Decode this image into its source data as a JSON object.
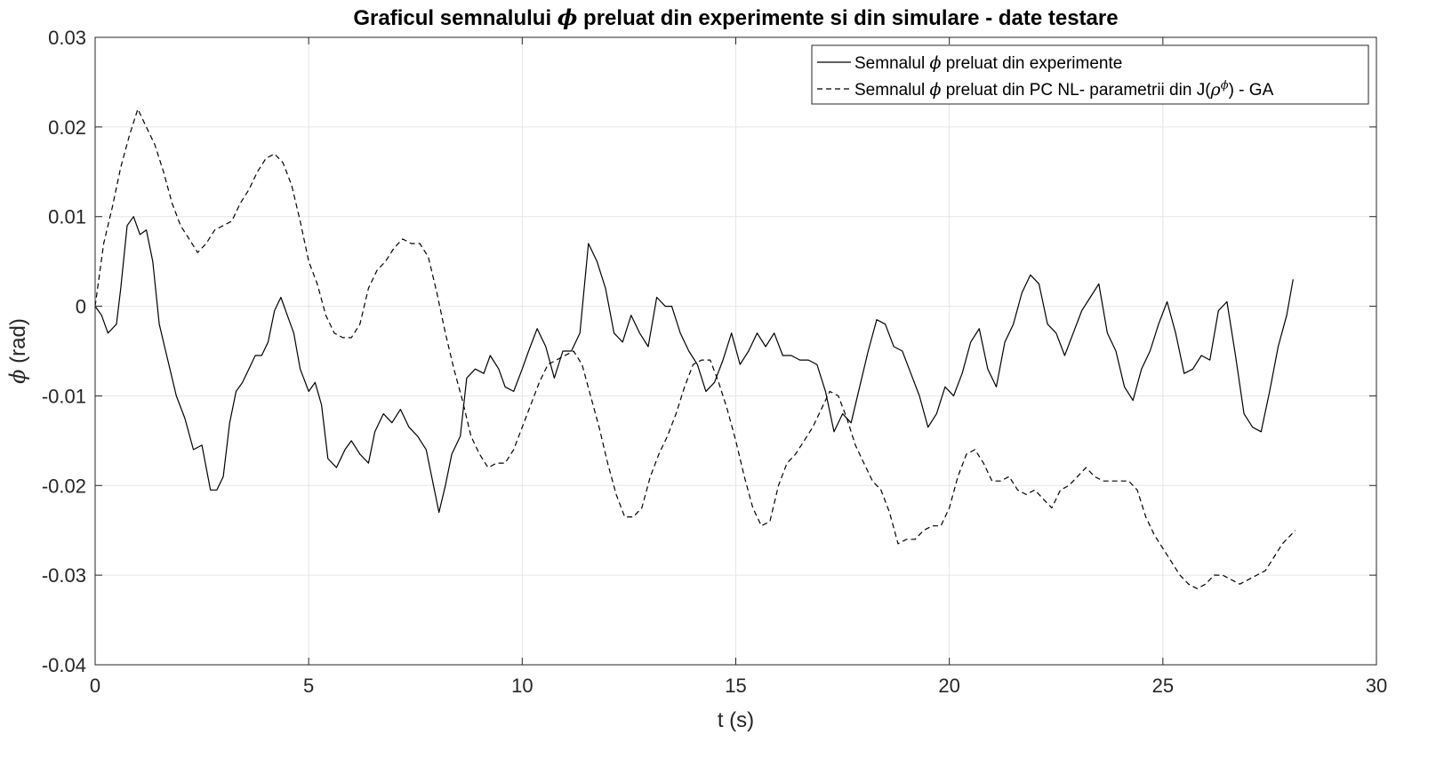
{
  "chart_data": {
    "type": "line",
    "title_parts": [
      "Graficul semnalului ",
      "ϕ",
      " preluat din experimente si din simulare - date testare"
    ],
    "xlabel": "t (s)",
    "ylabel_parts": [
      "ϕ",
      " (rad)"
    ],
    "xlim": [
      0,
      30
    ],
    "ylim": [
      -0.04,
      0.03
    ],
    "xticks": [
      0,
      5,
      10,
      15,
      20,
      25,
      30
    ],
    "xtick_labels": [
      "0",
      "5",
      "10",
      "15",
      "20",
      "25",
      "30"
    ],
    "yticks": [
      0.03,
      0.02,
      0.01,
      0,
      -0.01,
      -0.02,
      -0.03,
      -0.04
    ],
    "ytick_labels": [
      "0.03",
      "0.02",
      "0.01",
      "0",
      "-0.01",
      "-0.02",
      "-0.03",
      "-0.04"
    ],
    "grid": true,
    "legend_position": "top-right",
    "series": [
      {
        "name_parts": [
          "Semnalul ",
          "ϕ",
          " preluat din experimente"
        ],
        "style": "solid",
        "color": "#000000",
        "points": [
          [
            0,
            0
          ],
          [
            0.15,
            -0.001
          ],
          [
            0.3,
            -0.003
          ],
          [
            0.5,
            -0.002
          ],
          [
            0.6,
            0.002
          ],
          [
            0.75,
            0.009
          ],
          [
            0.9,
            0.01
          ],
          [
            1.05,
            0.008
          ],
          [
            1.2,
            0.0085
          ],
          [
            1.35,
            0.005
          ],
          [
            1.5,
            -0.002
          ],
          [
            1.7,
            -0.006
          ],
          [
            1.9,
            -0.01
          ],
          [
            2.1,
            -0.0125
          ],
          [
            2.3,
            -0.016
          ],
          [
            2.5,
            -0.0155
          ],
          [
            2.7,
            -0.0205
          ],
          [
            2.85,
            -0.0205
          ],
          [
            3.0,
            -0.019
          ],
          [
            3.15,
            -0.013
          ],
          [
            3.3,
            -0.0095
          ],
          [
            3.45,
            -0.0085
          ],
          [
            3.6,
            -0.007
          ],
          [
            3.75,
            -0.0055
          ],
          [
            3.9,
            -0.0055
          ],
          [
            4.05,
            -0.004
          ],
          [
            4.2,
            -0.0005
          ],
          [
            4.35,
            0.001
          ],
          [
            4.5,
            -0.001
          ],
          [
            4.65,
            -0.003
          ],
          [
            4.8,
            -0.007
          ],
          [
            5.0,
            -0.0095
          ],
          [
            5.15,
            -0.0085
          ],
          [
            5.3,
            -0.011
          ],
          [
            5.45,
            -0.017
          ],
          [
            5.65,
            -0.018
          ],
          [
            5.85,
            -0.016
          ],
          [
            6.0,
            -0.015
          ],
          [
            6.2,
            -0.0165
          ],
          [
            6.4,
            -0.0175
          ],
          [
            6.55,
            -0.014
          ],
          [
            6.75,
            -0.012
          ],
          [
            6.95,
            -0.013
          ],
          [
            7.15,
            -0.0115
          ],
          [
            7.35,
            -0.0135
          ],
          [
            7.55,
            -0.0145
          ],
          [
            7.75,
            -0.016
          ],
          [
            7.9,
            -0.0195
          ],
          [
            8.05,
            -0.023
          ],
          [
            8.2,
            -0.02
          ],
          [
            8.35,
            -0.0165
          ],
          [
            8.55,
            -0.0145
          ],
          [
            8.7,
            -0.008
          ],
          [
            8.9,
            -0.007
          ],
          [
            9.1,
            -0.0075
          ],
          [
            9.25,
            -0.0055
          ],
          [
            9.45,
            -0.007
          ],
          [
            9.6,
            -0.009
          ],
          [
            9.8,
            -0.0095
          ],
          [
            10.0,
            -0.007
          ],
          [
            10.15,
            -0.005
          ],
          [
            10.35,
            -0.0025
          ],
          [
            10.55,
            -0.0045
          ],
          [
            10.75,
            -0.008
          ],
          [
            10.95,
            -0.005
          ],
          [
            11.15,
            -0.005
          ],
          [
            11.35,
            -0.003
          ],
          [
            11.55,
            0.007
          ],
          [
            11.75,
            0.005
          ],
          [
            11.95,
            0.002
          ],
          [
            12.15,
            -0.003
          ],
          [
            12.35,
            -0.004
          ],
          [
            12.55,
            -0.001
          ],
          [
            12.75,
            -0.003
          ],
          [
            12.95,
            -0.0045
          ],
          [
            13.15,
            0.001
          ],
          [
            13.35,
            0
          ],
          [
            13.5,
            0
          ],
          [
            13.7,
            -0.003
          ],
          [
            13.9,
            -0.005
          ],
          [
            14.1,
            -0.0065
          ],
          [
            14.3,
            -0.0095
          ],
          [
            14.5,
            -0.0085
          ],
          [
            14.7,
            -0.006
          ],
          [
            14.9,
            -0.003
          ],
          [
            15.1,
            -0.0065
          ],
          [
            15.3,
            -0.005
          ],
          [
            15.5,
            -0.003
          ],
          [
            15.7,
            -0.0045
          ],
          [
            15.9,
            -0.003
          ],
          [
            16.1,
            -0.0055
          ],
          [
            16.3,
            -0.0055
          ],
          [
            16.5,
            -0.006
          ],
          [
            16.7,
            -0.006
          ],
          [
            16.9,
            -0.0065
          ],
          [
            17.1,
            -0.0095
          ],
          [
            17.3,
            -0.014
          ],
          [
            17.5,
            -0.012
          ],
          [
            17.7,
            -0.013
          ],
          [
            17.9,
            -0.009
          ],
          [
            18.1,
            -0.005
          ],
          [
            18.3,
            -0.0015
          ],
          [
            18.5,
            -0.002
          ],
          [
            18.7,
            -0.0045
          ],
          [
            18.9,
            -0.005
          ],
          [
            19.1,
            -0.0075
          ],
          [
            19.3,
            -0.01
          ],
          [
            19.5,
            -0.0135
          ],
          [
            19.7,
            -0.012
          ],
          [
            19.9,
            -0.009
          ],
          [
            20.1,
            -0.01
          ],
          [
            20.3,
            -0.0075
          ],
          [
            20.5,
            -0.004
          ],
          [
            20.7,
            -0.0025
          ],
          [
            20.9,
            -0.007
          ],
          [
            21.1,
            -0.009
          ],
          [
            21.3,
            -0.004
          ],
          [
            21.5,
            -0.002
          ],
          [
            21.7,
            0.0015
          ],
          [
            21.9,
            0.0035
          ],
          [
            22.1,
            0.0025
          ],
          [
            22.3,
            -0.002
          ],
          [
            22.5,
            -0.003
          ],
          [
            22.7,
            -0.0055
          ],
          [
            22.9,
            -0.003
          ],
          [
            23.1,
            -0.0005
          ],
          [
            23.3,
            0.001
          ],
          [
            23.5,
            0.0025
          ],
          [
            23.7,
            -0.003
          ],
          [
            23.9,
            -0.005
          ],
          [
            24.1,
            -0.009
          ],
          [
            24.3,
            -0.0105
          ],
          [
            24.5,
            -0.007
          ],
          [
            24.7,
            -0.005
          ],
          [
            24.9,
            -0.002
          ],
          [
            25.1,
            0.0005
          ],
          [
            25.3,
            -0.003
          ],
          [
            25.5,
            -0.0075
          ],
          [
            25.7,
            -0.007
          ],
          [
            25.9,
            -0.0055
          ],
          [
            26.1,
            -0.006
          ],
          [
            26.3,
            -0.0005
          ],
          [
            26.5,
            0.0005
          ],
          [
            26.7,
            -0.0055
          ],
          [
            26.9,
            -0.012
          ],
          [
            27.1,
            -0.0135
          ],
          [
            27.3,
            -0.014
          ],
          [
            27.5,
            -0.0095
          ],
          [
            27.7,
            -0.0045
          ],
          [
            27.9,
            -0.001
          ],
          [
            28.05,
            0.003
          ]
        ]
      },
      {
        "name_parts": [
          "Semnalul ",
          "ϕ",
          " preluat din PC NL- parametrii din J(",
          "ρ",
          "ϕ",
          ") - GA"
        ],
        "style": "dashed",
        "color": "#000000",
        "points": [
          [
            0,
            0
          ],
          [
            0.2,
            0.007
          ],
          [
            0.4,
            0.011
          ],
          [
            0.6,
            0.0155
          ],
          [
            0.8,
            0.019
          ],
          [
            1.0,
            0.022
          ],
          [
            1.2,
            0.02
          ],
          [
            1.4,
            0.018
          ],
          [
            1.6,
            0.015
          ],
          [
            1.8,
            0.0115
          ],
          [
            2.0,
            0.009
          ],
          [
            2.2,
            0.0075
          ],
          [
            2.4,
            0.006
          ],
          [
            2.6,
            0.007
          ],
          [
            2.8,
            0.0085
          ],
          [
            3.0,
            0.009
          ],
          [
            3.2,
            0.0095
          ],
          [
            3.4,
            0.0115
          ],
          [
            3.6,
            0.013
          ],
          [
            3.8,
            0.015
          ],
          [
            4.0,
            0.0165
          ],
          [
            4.2,
            0.017
          ],
          [
            4.4,
            0.016
          ],
          [
            4.6,
            0.0135
          ],
          [
            4.8,
            0.0095
          ],
          [
            5.0,
            0.005
          ],
          [
            5.2,
            0.0025
          ],
          [
            5.4,
            -0.001
          ],
          [
            5.6,
            -0.003
          ],
          [
            5.8,
            -0.0035
          ],
          [
            6.0,
            -0.0035
          ],
          [
            6.2,
            -0.002
          ],
          [
            6.4,
            0.002
          ],
          [
            6.6,
            0.004
          ],
          [
            6.8,
            0.005
          ],
          [
            7.0,
            0.0065
          ],
          [
            7.2,
            0.0075
          ],
          [
            7.4,
            0.007
          ],
          [
            7.6,
            0.007
          ],
          [
            7.8,
            0.0055
          ],
          [
            8.0,
            0.0015
          ],
          [
            8.2,
            -0.003
          ],
          [
            8.4,
            -0.007
          ],
          [
            8.6,
            -0.0105
          ],
          [
            8.8,
            -0.0145
          ],
          [
            9.0,
            -0.0165
          ],
          [
            9.2,
            -0.018
          ],
          [
            9.4,
            -0.0175
          ],
          [
            9.6,
            -0.0175
          ],
          [
            9.8,
            -0.016
          ],
          [
            10.0,
            -0.0135
          ],
          [
            10.2,
            -0.011
          ],
          [
            10.4,
            -0.0085
          ],
          [
            10.6,
            -0.0065
          ],
          [
            10.8,
            -0.006
          ],
          [
            11.0,
            -0.0055
          ],
          [
            11.2,
            -0.005
          ],
          [
            11.4,
            -0.0065
          ],
          [
            11.6,
            -0.01
          ],
          [
            11.8,
            -0.0135
          ],
          [
            12.0,
            -0.0175
          ],
          [
            12.2,
            -0.021
          ],
          [
            12.4,
            -0.0235
          ],
          [
            12.6,
            -0.0235
          ],
          [
            12.8,
            -0.0225
          ],
          [
            13.0,
            -0.019
          ],
          [
            13.2,
            -0.0165
          ],
          [
            13.4,
            -0.0145
          ],
          [
            13.6,
            -0.012
          ],
          [
            13.8,
            -0.009
          ],
          [
            14.0,
            -0.0065
          ],
          [
            14.2,
            -0.006
          ],
          [
            14.4,
            -0.006
          ],
          [
            14.6,
            -0.0085
          ],
          [
            14.8,
            -0.0115
          ],
          [
            15.0,
            -0.015
          ],
          [
            15.2,
            -0.019
          ],
          [
            15.4,
            -0.0225
          ],
          [
            15.6,
            -0.0245
          ],
          [
            15.8,
            -0.024
          ],
          [
            16.0,
            -0.02
          ],
          [
            16.2,
            -0.0175
          ],
          [
            16.4,
            -0.0165
          ],
          [
            16.6,
            -0.015
          ],
          [
            16.8,
            -0.0135
          ],
          [
            17.0,
            -0.0115
          ],
          [
            17.2,
            -0.0095
          ],
          [
            17.4,
            -0.01
          ],
          [
            17.6,
            -0.0125
          ],
          [
            17.8,
            -0.0155
          ],
          [
            18.0,
            -0.0175
          ],
          [
            18.2,
            -0.0195
          ],
          [
            18.4,
            -0.0205
          ],
          [
            18.6,
            -0.023
          ],
          [
            18.8,
            -0.0265
          ],
          [
            19.0,
            -0.026
          ],
          [
            19.2,
            -0.026
          ],
          [
            19.4,
            -0.025
          ],
          [
            19.6,
            -0.0245
          ],
          [
            19.8,
            -0.0245
          ],
          [
            20.0,
            -0.0225
          ],
          [
            20.2,
            -0.019
          ],
          [
            20.4,
            -0.0165
          ],
          [
            20.6,
            -0.016
          ],
          [
            20.8,
            -0.0175
          ],
          [
            21.0,
            -0.0195
          ],
          [
            21.2,
            -0.0195
          ],
          [
            21.4,
            -0.019
          ],
          [
            21.6,
            -0.0205
          ],
          [
            21.8,
            -0.021
          ],
          [
            22.0,
            -0.0205
          ],
          [
            22.2,
            -0.0215
          ],
          [
            22.4,
            -0.0225
          ],
          [
            22.6,
            -0.0205
          ],
          [
            22.8,
            -0.02
          ],
          [
            23.0,
            -0.019
          ],
          [
            23.2,
            -0.018
          ],
          [
            23.4,
            -0.019
          ],
          [
            23.6,
            -0.0195
          ],
          [
            23.8,
            -0.0195
          ],
          [
            24.0,
            -0.0195
          ],
          [
            24.2,
            -0.0195
          ],
          [
            24.4,
            -0.0205
          ],
          [
            24.6,
            -0.0235
          ],
          [
            24.8,
            -0.0255
          ],
          [
            25.0,
            -0.027
          ],
          [
            25.2,
            -0.0285
          ],
          [
            25.4,
            -0.03
          ],
          [
            25.6,
            -0.031
          ],
          [
            25.8,
            -0.0315
          ],
          [
            26.0,
            -0.031
          ],
          [
            26.2,
            -0.03
          ],
          [
            26.4,
            -0.03
          ],
          [
            26.6,
            -0.0305
          ],
          [
            26.8,
            -0.031
          ],
          [
            27.0,
            -0.0305
          ],
          [
            27.2,
            -0.03
          ],
          [
            27.4,
            -0.0295
          ],
          [
            27.6,
            -0.028
          ],
          [
            27.8,
            -0.0265
          ],
          [
            28.0,
            -0.0255
          ],
          [
            28.1,
            -0.025
          ]
        ]
      }
    ]
  }
}
